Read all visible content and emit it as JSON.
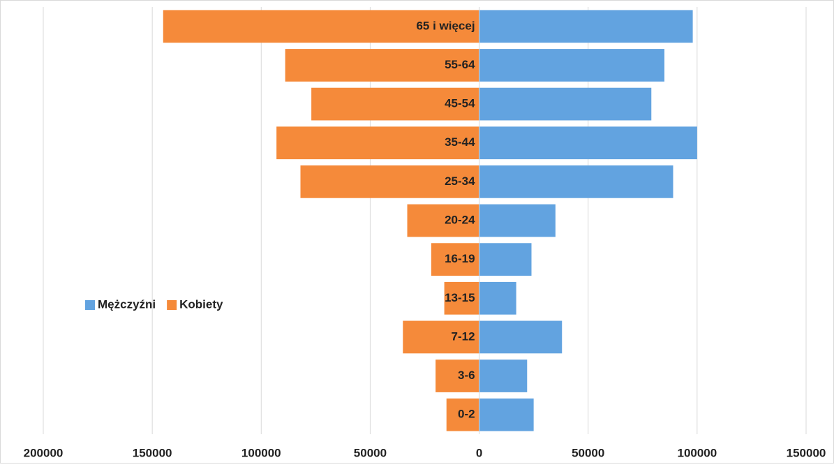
{
  "chart_data": {
    "type": "bar",
    "orientation": "horizontal",
    "stacked": true,
    "categories": [
      "0-2",
      "3-6",
      "7-12",
      "13-15",
      "16-19",
      "20-24",
      "25-34",
      "35-44",
      "45-54",
      "55-64",
      "65 i więcej"
    ],
    "series": [
      {
        "name": "Mężczyźni",
        "color": "#62a3e0",
        "values": [
          25000,
          22000,
          38000,
          17000,
          24000,
          35000,
          89000,
          100000,
          79000,
          85000,
          98000
        ]
      },
      {
        "name": "Kobiety",
        "color": "#f58a3a",
        "values": [
          -15000,
          -20000,
          -35000,
          -16000,
          -22000,
          -33000,
          -82000,
          -93000,
          -77000,
          -89000,
          -145000
        ]
      }
    ],
    "xlim": [
      -200000,
      150000
    ],
    "xticks": [
      {
        "value": -200000,
        "label": "200000"
      },
      {
        "value": -150000,
        "label": "150000"
      },
      {
        "value": -100000,
        "label": "100000"
      },
      {
        "value": -50000,
        "label": "50000"
      },
      0,
      50000,
      100000,
      150000
    ],
    "grid": true,
    "legend": "left"
  }
}
